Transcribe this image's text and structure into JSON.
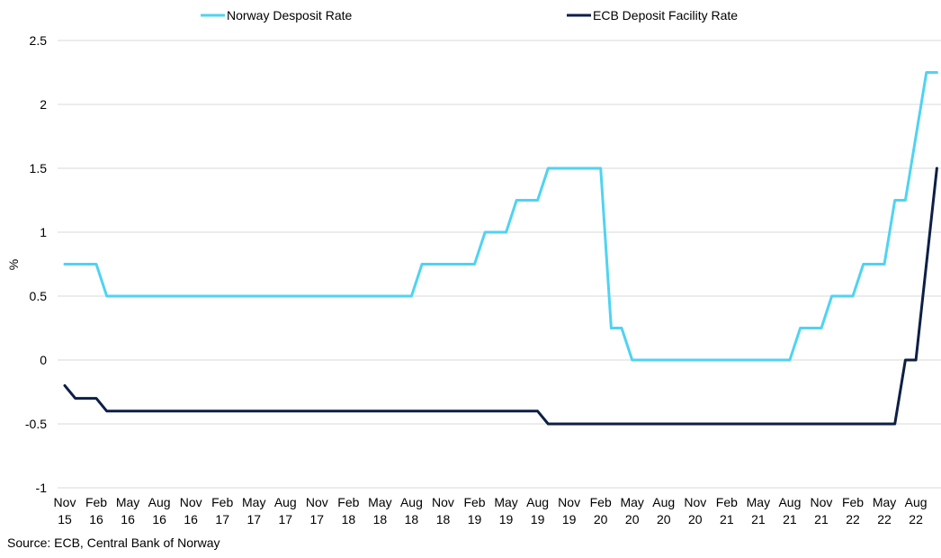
{
  "chart_data": {
    "type": "line",
    "ylabel": "%",
    "ylim": [
      -1,
      2.5
    ],
    "yticks": [
      "2.5",
      "2",
      "1.5",
      "1",
      "0.5",
      "0",
      "-0.5",
      "-1"
    ],
    "grid": "horizontal",
    "legend_position": "top",
    "x_tick_labels": [
      [
        "Nov",
        "15"
      ],
      [
        "Feb",
        "16"
      ],
      [
        "May",
        "16"
      ],
      [
        "Aug",
        "16"
      ],
      [
        "Nov",
        "16"
      ],
      [
        "Feb",
        "17"
      ],
      [
        "May",
        "17"
      ],
      [
        "Aug",
        "17"
      ],
      [
        "Nov",
        "17"
      ],
      [
        "Feb",
        "18"
      ],
      [
        "May",
        "18"
      ],
      [
        "Aug",
        "18"
      ],
      [
        "Nov",
        "18"
      ],
      [
        "Feb",
        "19"
      ],
      [
        "May",
        "19"
      ],
      [
        "Aug",
        "19"
      ],
      [
        "Nov",
        "19"
      ],
      [
        "Feb",
        "20"
      ],
      [
        "May",
        "20"
      ],
      [
        "Aug",
        "20"
      ],
      [
        "Nov",
        "20"
      ],
      [
        "Feb",
        "21"
      ],
      [
        "May",
        "21"
      ],
      [
        "Aug",
        "21"
      ],
      [
        "Nov",
        "21"
      ],
      [
        "Feb",
        "22"
      ],
      [
        "May",
        "22"
      ],
      [
        "Aug",
        "22"
      ]
    ],
    "series": [
      {
        "name": "Norway Desposit Rate",
        "color": "#4fd3f2",
        "points": [
          [
            "2015-11",
            0.75
          ],
          [
            "2016-02",
            0.75
          ],
          [
            "2016-03",
            0.5
          ],
          [
            "2018-08",
            0.5
          ],
          [
            "2018-09",
            0.75
          ],
          [
            "2019-02",
            0.75
          ],
          [
            "2019-03",
            1.0
          ],
          [
            "2019-05",
            1.0
          ],
          [
            "2019-06",
            1.25
          ],
          [
            "2019-08",
            1.25
          ],
          [
            "2019-09",
            1.5
          ],
          [
            "2020-02",
            1.5
          ],
          [
            "2020-03",
            0.25
          ],
          [
            "2020-04",
            0.25
          ],
          [
            "2020-05",
            0.0
          ],
          [
            "2021-08",
            0.0
          ],
          [
            "2021-09",
            0.25
          ],
          [
            "2021-11",
            0.25
          ],
          [
            "2021-12",
            0.5
          ],
          [
            "2022-02",
            0.5
          ],
          [
            "2022-03",
            0.75
          ],
          [
            "2022-05",
            0.75
          ],
          [
            "2022-06",
            1.25
          ],
          [
            "2022-07",
            1.25
          ],
          [
            "2022-09",
            2.25
          ],
          [
            "2022-10",
            2.25
          ]
        ]
      },
      {
        "name": "ECB Deposit Facility Rate",
        "color": "#0d1f45",
        "points": [
          [
            "2015-11",
            -0.2
          ],
          [
            "2015-12",
            -0.3
          ],
          [
            "2016-02",
            -0.3
          ],
          [
            "2016-03",
            -0.4
          ],
          [
            "2019-08",
            -0.4
          ],
          [
            "2019-09",
            -0.5
          ],
          [
            "2022-06",
            -0.5
          ],
          [
            "2022-07",
            0.0
          ],
          [
            "2022-08",
            0.0
          ],
          [
            "2022-10",
            1.5
          ]
        ]
      }
    ]
  },
  "source": "Source: ECB, Central Bank of Norway"
}
